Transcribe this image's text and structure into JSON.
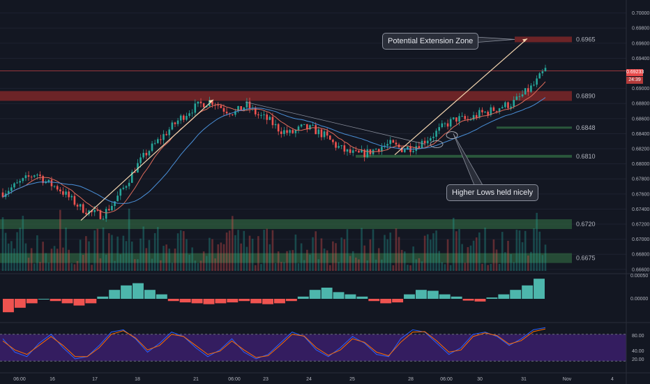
{
  "chart_data": {
    "type": "line",
    "symbol_note": "",
    "price_axis_ticks": [
      "0.70000",
      "0.69800",
      "0.69600",
      "0.69400",
      "0.69000",
      "0.68800",
      "0.68600",
      "0.68400",
      "0.68200",
      "0.68000",
      "0.67800",
      "0.67600",
      "0.67400",
      "0.67200",
      "0.67000",
      "0.66800",
      "0.66600"
    ],
    "price_axis_range": [
      0.6658,
      0.7008
    ],
    "last_price": "0.69233",
    "countdown": "24:39",
    "x_tick_labels": [
      "06:00",
      "16",
      "17",
      "18",
      "21",
      "06:00",
      "23",
      "24",
      "25",
      "28",
      "06:00",
      "30",
      "31",
      "Nov",
      "4"
    ],
    "levels": [
      {
        "label": "0.6965",
        "value": 0.6965,
        "color": "#8b2a2a",
        "kind": "resistance zone"
      },
      {
        "label": "0.6890",
        "value": 0.689,
        "color": "#8b2a2a",
        "kind": "resistance zone"
      },
      {
        "label": "0.6848",
        "value": 0.6848,
        "color": "#2e5e3e",
        "kind": "support line"
      },
      {
        "label": "0.6810",
        "value": 0.681,
        "color": "#2e5e3e",
        "kind": "support line"
      },
      {
        "label": "0.6720",
        "value": 0.672,
        "color": "#2e5e3e",
        "kind": "support zone"
      },
      {
        "label": "0.6675",
        "value": 0.6675,
        "color": "#2e5e3e",
        "kind": "support zone"
      }
    ],
    "annotations": [
      {
        "text": "Potential Extension Zone"
      },
      {
        "text": "Higher Lows held nicely"
      }
    ],
    "price_path": [
      0.6762,
      0.677,
      0.6779,
      0.6788,
      0.6775,
      0.6768,
      0.6755,
      0.6742,
      0.6735,
      0.6732,
      0.6748,
      0.677,
      0.6795,
      0.6815,
      0.683,
      0.6845,
      0.686,
      0.6872,
      0.688,
      0.6883,
      0.6872,
      0.6868,
      0.6878,
      0.6865,
      0.6858,
      0.6845,
      0.684,
      0.6848,
      0.6846,
      0.6838,
      0.6825,
      0.6816,
      0.6812,
      0.6815,
      0.6822,
      0.6826,
      0.682,
      0.6822,
      0.683,
      0.684,
      0.6852,
      0.686,
      0.6858,
      0.6866,
      0.687,
      0.6876,
      0.688,
      0.6892,
      0.6905,
      0.6925
    ],
    "macd_axis_ticks": [
      "0.00050",
      "0.00000"
    ],
    "stoch_axis_ticks": [
      "80.00",
      "40.00",
      "20.00"
    ],
    "stoch_band": [
      20,
      80
    ],
    "macd_hist": [
      -0.0003,
      -0.0002,
      -0.0001,
      0.0,
      -5e-05,
      -0.0001,
      -0.00015,
      -0.0001,
      5e-05,
      0.0002,
      0.0003,
      0.00035,
      0.0002,
      0.0001,
      -5e-05,
      -8e-05,
      -0.0001,
      -0.00012,
      -0.0001,
      -8e-05,
      -5e-05,
      -0.0001,
      -0.00012,
      -0.0001,
      -5e-05,
      5e-05,
      0.0002,
      0.00025,
      0.00015,
      0.0001,
      5e-05,
      -5e-05,
      -0.0001,
      -8e-05,
      0.0001,
      0.0002,
      0.00018,
      0.0001,
      5e-05,
      -4e-05,
      -6e-05,
      3e-05,
      0.0001,
      0.0002,
      0.0003,
      0.00045
    ],
    "stoch_k": [
      70,
      40,
      30,
      60,
      80,
      50,
      25,
      30,
      55,
      85,
      90,
      70,
      40,
      60,
      85,
      75,
      50,
      30,
      45,
      70,
      40,
      25,
      35,
      60,
      85,
      75,
      45,
      30,
      50,
      75,
      60,
      35,
      30,
      70,
      90,
      85,
      60,
      35,
      50,
      80,
      85,
      75,
      55,
      70,
      90,
      95
    ],
    "stoch_d": [
      65,
      45,
      35,
      55,
      75,
      55,
      30,
      30,
      50,
      80,
      88,
      72,
      45,
      55,
      80,
      75,
      55,
      35,
      42,
      65,
      45,
      28,
      32,
      55,
      80,
      76,
      50,
      33,
      45,
      70,
      62,
      40,
      32,
      62,
      85,
      86,
      65,
      40,
      45,
      75,
      83,
      77,
      58,
      66,
      86,
      92
    ]
  }
}
